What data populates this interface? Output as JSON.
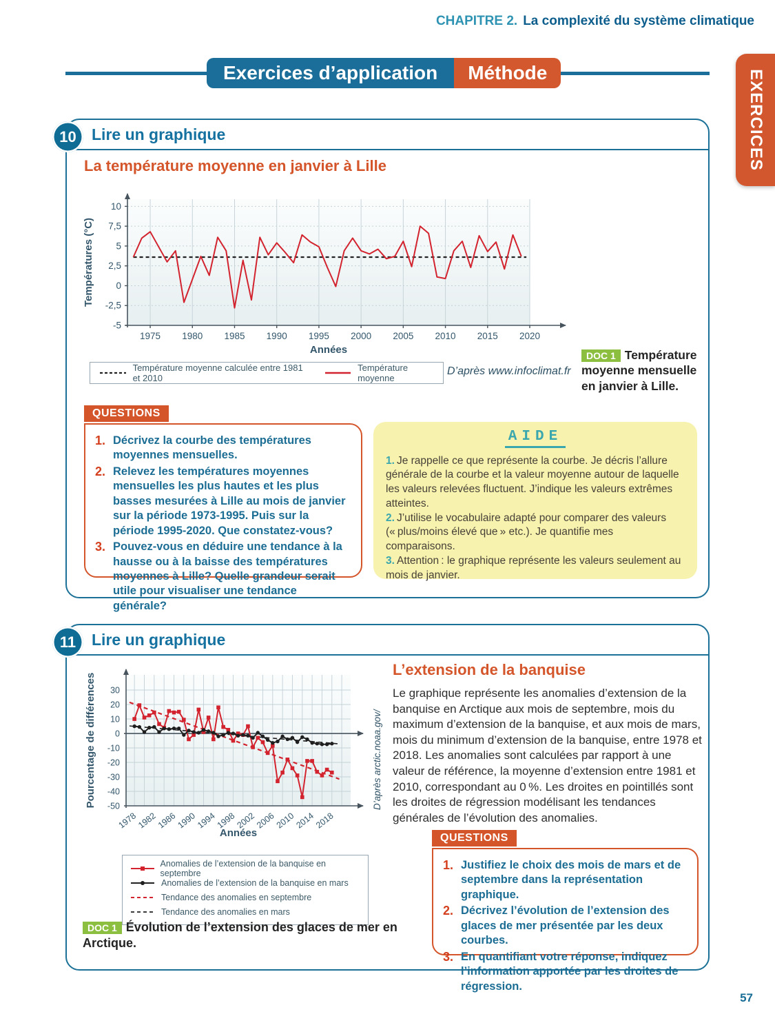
{
  "page": {
    "chapter_label": "CHAPITRE 2.",
    "chapter_title": "La complexité du système climatique",
    "banner_left": "Exercices d’application",
    "banner_right": "Méthode",
    "side_tab": "EXERCICES",
    "page_number": "57"
  },
  "exercise10": {
    "number": "10",
    "header": "Lire un graphique",
    "doc_title": "La température moyenne en janvier à Lille",
    "legend": {
      "ref": "Température moyenne calculée entre 1981 et 2010",
      "series": "Température moyenne"
    },
    "source": "D’après www.infoclimat.fr",
    "doc_badge": "DOC 1",
    "doc_caption": "Température moyenne mensuelle en janvier à Lille.",
    "questions_title": "QUESTIONS",
    "questions": [
      {
        "num": "1.",
        "text": "Décrivez la courbe des températures moyennes mensuelles."
      },
      {
        "num": "2.",
        "text": "Relevez les températures moyennes mensuelles les plus hautes et les plus basses mesurées à Lille au mois de janvier sur la période 1973-1995. Puis sur la période 1995-2020. Que constatez-vous?"
      },
      {
        "num": "3.",
        "text": "Pouvez-vous en déduire une tendance à la hausse ou à la baisse des températures moyennes à Lille? Quelle grandeur serait utile pour visualiser une tendance générale?"
      }
    ],
    "aide": {
      "title": "AIDE",
      "items": [
        {
          "num": "1.",
          "text": "Je rappelle ce que représente la courbe. Je décris l’allure générale de la courbe et la valeur moyenne autour de laquelle les valeurs relevées fluctuent. J’indique les valeurs extrêmes atteintes."
        },
        {
          "num": "2.",
          "text": "J’utilise le vocabulaire adapté pour comparer des valeurs (« plus/moins élevé que » etc.). Je quantifie mes comparaisons."
        },
        {
          "num": "3.",
          "text": "Attention : le graphique représente les valeurs seulement au mois de janvier."
        }
      ]
    }
  },
  "exercise11": {
    "number": "11",
    "header": "Lire un graphique",
    "doc_title": "L’extension de la banquise",
    "paragraph": "Le graphique représente les anomalies d’extension de la banquise en Arctique aux mois de septembre, mois du maximum d’extension de la banquise, et aux mois de mars, mois du minimum d’extension de la banquise, entre 1978 et 2018. Les anomalies sont calculées par rapport à une valeur de référence, la moyenne d’extension entre 1981 et 2010, correspondant au 0 %. Les droites en pointillés sont les droites de régression modélisant les tendances générales de l’évolution des anomalies.",
    "chart_source": "D’après arctic.noaa.gov/",
    "legend": [
      "Anomalies de l’extension de la banquise en septembre",
      "Anomalies de l’extension de la banquise en mars",
      "Tendance des anomalies en septembre",
      "Tendance des anomalies en mars"
    ],
    "doc_badge": "DOC 1",
    "doc_caption": "Évolution de l’extension des glaces de mer en Arctique.",
    "questions_title": "QUESTIONS",
    "questions": [
      {
        "num": "1.",
        "text": "Justifiez le choix des mois de mars et de septembre dans la représentation graphique."
      },
      {
        "num": "2.",
        "text": "Décrivez l’évolution de l’extension des glaces de mer présentée par les deux courbes."
      },
      {
        "num": "3.",
        "text": "En quantifiant votre réponse, indiquez l’information apportée par les droites de régression."
      }
    ]
  },
  "chart_data": [
    {
      "type": "line",
      "title": "La température moyenne en janvier à Lille",
      "xlabel": "Années",
      "ylabel": "Températures (°C)",
      "xlim": [
        1972.3,
        2020
      ],
      "ylim": [
        -5,
        10.9
      ],
      "x_ticks": [
        1975,
        1980,
        1985,
        1990,
        1995,
        2000,
        2005,
        2010,
        2015,
        2020
      ],
      "y_ticks": [
        10,
        7.5,
        5,
        2.5,
        0,
        -2.5,
        -5
      ],
      "y_tick_labels": [
        "10",
        "7,5",
        "5",
        "2,5",
        "0",
        "-2,5",
        "-5"
      ],
      "grid_x": [
        1975,
        1980,
        1985,
        1990,
        1995,
        2000,
        2005,
        2010,
        2015,
        2020
      ],
      "tick_marks": true,
      "x_axis_overhang": 52,
      "reference_line": {
        "value": 3.6,
        "from": 1973,
        "to": 2019.6,
        "label": "Température moyenne calculée entre 1981 et 2010"
      },
      "series": [
        {
          "name": "Température moyenne",
          "color": "#d2232e",
          "marker": "none",
          "x_start": 1973,
          "values": [
            3.6,
            6,
            6.8,
            4.9,
            3,
            4.4,
            -2.1,
            0.8,
            3.7,
            1.3,
            6.1,
            4.4,
            -2.8,
            3.2,
            -1.8,
            6.1,
            3.9,
            5.4,
            4.2,
            2.9,
            6.4,
            5.5,
            4.9,
            2.3,
            -0.1,
            4.4,
            6,
            4.4,
            4,
            4.6,
            3.4,
            3.7,
            5.6,
            2.4,
            7.5,
            6.6,
            1.1,
            0.9,
            4.4,
            5.6,
            2.3,
            6.3,
            4.3,
            5.5,
            2.1,
            6.4,
            3.7
          ]
        }
      ]
    },
    {
      "type": "line",
      "title": "Évolution de l’extension des glaces de mer en Arctique",
      "xlabel": "Années",
      "ylabel": "Pourcentage de différences",
      "xlim": [
        1976.3,
        2021.8
      ],
      "ylim": [
        -50,
        40.5
      ],
      "x_ticks": [
        1978,
        1982,
        1986,
        1990,
        1994,
        1998,
        2002,
        2006,
        2010,
        2014,
        2018
      ],
      "x_tick_rotate": -38,
      "y_ticks": [
        30,
        20,
        10,
        0,
        -10,
        -20,
        -30,
        -40,
        -50
      ],
      "y_tick_labels": [
        "30",
        "20",
        "10",
        "0",
        "-10",
        "-20",
        "-30",
        "-40",
        "-50"
      ],
      "grid_x": [
        1978,
        1980,
        1982,
        1984,
        1986,
        1988,
        1990,
        1992,
        1994,
        1996,
        1998,
        2000,
        2002,
        2004,
        2006,
        2008,
        2010,
        2012,
        2014,
        2016,
        2018,
        2020
      ],
      "zero_axis": true,
      "x_axis_overhang": 18,
      "series": [
        {
          "name": "Anomalies de l’extension de la banquise en septembre",
          "color": "#d2232e",
          "marker": "square",
          "x_start": 1978,
          "values": [
            10,
            19.5,
            11,
            12.5,
            14.5,
            6.5,
            4,
            15.5,
            14.5,
            15,
            9.5,
            -4,
            -1,
            16.5,
            1,
            11,
            -4,
            18,
            4.5,
            2.5,
            -5,
            0,
            -1,
            5,
            -9.5,
            -3,
            -6,
            -13.5,
            -8.5,
            -33,
            -27,
            -18,
            -24,
            -29,
            -44,
            -19,
            -19,
            -26.5,
            -29,
            -25,
            -27
          ]
        },
        {
          "name": "Anomalies de l’extension de la banquise en mars",
          "color": "#1f1f1f",
          "marker": "circle",
          "x_start": 1978,
          "values": [
            5,
            4.5,
            1,
            4,
            4.5,
            1,
            3.5,
            3,
            3.5,
            3.5,
            -1,
            2,
            1,
            0.5,
            2.5,
            1.5,
            0.5,
            -2,
            -1,
            0.5,
            0,
            -1.5,
            -1,
            -1.5,
            -3,
            0.5,
            -2,
            -4.5,
            -6.5,
            -5.5,
            -2,
            -4,
            -3,
            -6,
            -2.5,
            -4,
            -6.5,
            -7,
            -7.5,
            -7.5,
            -7
          ]
        }
      ],
      "trends": [
        {
          "name": "Tendance des anomalies en septembre",
          "color": "#d2232e",
          "from": [
            1977,
            21.5
          ],
          "to": [
            2019.5,
            -31.5
          ],
          "width": 2.2
        },
        {
          "name": "Tendance des anomalies en mars",
          "color": "#1f1f1f",
          "from": [
            1977,
            5.2
          ],
          "to": [
            2019.5,
            -7.2
          ],
          "width": 1.6
        }
      ]
    }
  ]
}
